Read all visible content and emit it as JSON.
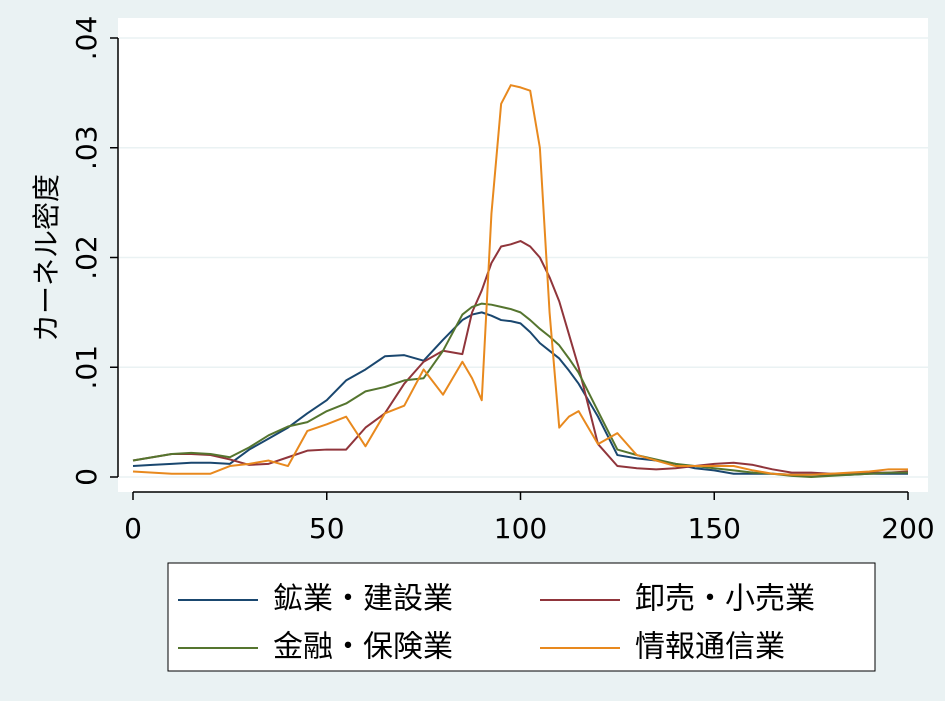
{
  "chart_data": {
    "type": "line",
    "y_label": "カーネル密度",
    "x": [
      0,
      5,
      10,
      15,
      20,
      25,
      30,
      35,
      40,
      45,
      50,
      55,
      60,
      65,
      70,
      75,
      80,
      85,
      87.5,
      90,
      92.5,
      95,
      97.5,
      100,
      102.5,
      105,
      107.5,
      110,
      112.5,
      115,
      120,
      125,
      130,
      135,
      140,
      145,
      150,
      155,
      160,
      165,
      170,
      175,
      180,
      185,
      190,
      195,
      200
    ],
    "series": [
      {
        "name": "鉱業・建設業",
        "color": "#1a476f",
        "values": [
          0.001,
          0.0011,
          0.0012,
          0.0013,
          0.0013,
          0.0012,
          0.0025,
          0.0035,
          0.0045,
          0.0058,
          0.007,
          0.0088,
          0.0098,
          0.011,
          0.0111,
          0.0106,
          0.0125,
          0.0143,
          0.0148,
          0.015,
          0.0147,
          0.0143,
          0.0142,
          0.014,
          0.0132,
          0.0122,
          0.0115,
          0.0108,
          0.0097,
          0.0085,
          0.0055,
          0.002,
          0.0017,
          0.0015,
          0.0012,
          0.0008,
          0.0006,
          0.0003,
          0.0003,
          0.0003,
          0.0002,
          0.0002,
          0.0002,
          0.0002,
          0.0003,
          0.0003,
          0.0003
        ]
      },
      {
        "name": "卸売・小売業",
        "color": "#90353b",
        "values": [
          0.0015,
          0.0018,
          0.0021,
          0.0021,
          0.002,
          0.0016,
          0.0011,
          0.0012,
          0.0018,
          0.0024,
          0.0025,
          0.0025,
          0.0045,
          0.0058,
          0.0085,
          0.0105,
          0.0115,
          0.0112,
          0.015,
          0.017,
          0.0195,
          0.021,
          0.0212,
          0.0215,
          0.021,
          0.02,
          0.0182,
          0.016,
          0.013,
          0.01,
          0.003,
          0.001,
          0.0008,
          0.0007,
          0.0008,
          0.001,
          0.0012,
          0.0013,
          0.0011,
          0.0007,
          0.0004,
          0.0004,
          0.0003,
          0.0003,
          0.0004,
          0.0004,
          0.0005
        ]
      },
      {
        "name": "金融・保険業",
        "color": "#55752f",
        "values": [
          0.0015,
          0.0018,
          0.0021,
          0.0022,
          0.0021,
          0.0018,
          0.0027,
          0.0038,
          0.0046,
          0.005,
          0.006,
          0.0067,
          0.0078,
          0.0082,
          0.0088,
          0.009,
          0.0115,
          0.0148,
          0.0155,
          0.0158,
          0.0157,
          0.0155,
          0.0153,
          0.015,
          0.0143,
          0.0135,
          0.0128,
          0.012,
          0.0108,
          0.0095,
          0.006,
          0.0025,
          0.002,
          0.0016,
          0.0012,
          0.001,
          0.0008,
          0.0006,
          0.0004,
          0.0003,
          0.0001,
          0.0,
          0.0001,
          0.0002,
          0.0003,
          0.0004,
          0.0004
        ]
      },
      {
        "name": "情報通信業",
        "color": "#e8891e",
        "values": [
          0.0005,
          0.0004,
          0.0003,
          0.0003,
          0.0003,
          0.001,
          0.0012,
          0.0015,
          0.001,
          0.0042,
          0.0048,
          0.0055,
          0.0028,
          0.0058,
          0.0065,
          0.0098,
          0.0075,
          0.0105,
          0.009,
          0.007,
          0.024,
          0.034,
          0.0357,
          0.0355,
          0.0352,
          0.03,
          0.015,
          0.0045,
          0.0055,
          0.006,
          0.003,
          0.004,
          0.002,
          0.0015,
          0.001,
          0.001,
          0.001,
          0.001,
          0.0006,
          0.0003,
          0.0002,
          0.0002,
          0.0003,
          0.0004,
          0.0005,
          0.0007,
          0.0007
        ]
      }
    ],
    "xlim": [
      0,
      200
    ],
    "xticks": [
      0,
      50,
      100,
      150,
      200
    ],
    "ylim": [
      0,
      0.04
    ],
    "yticks": [
      0,
      {
        "value": 0.01,
        "label": ".01"
      },
      {
        "value": 0.02,
        "label": ".02"
      },
      {
        "value": 0.03,
        "label": ".03"
      },
      {
        "value": 0.04,
        "label": ".04"
      }
    ],
    "grid": true,
    "legend": "bottom"
  }
}
